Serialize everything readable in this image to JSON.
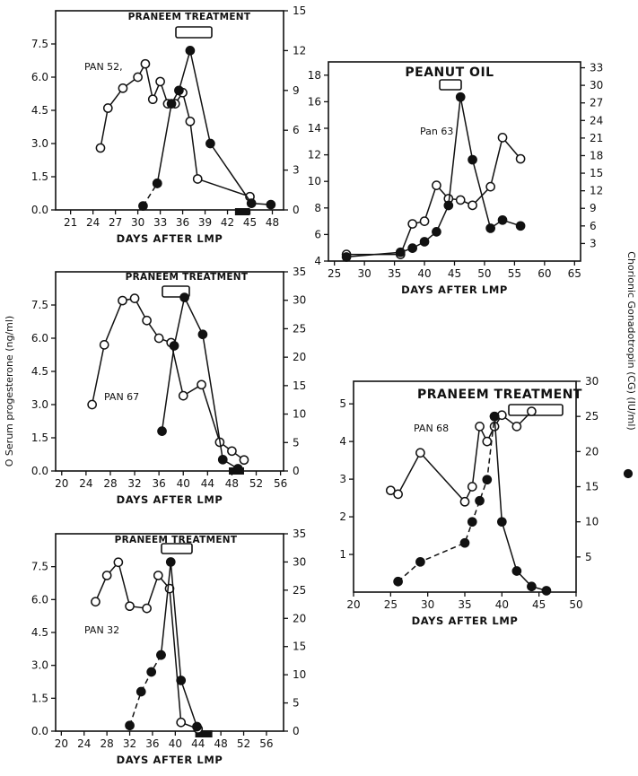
{
  "figure": {
    "left_ylabel": "O Serum progesterone (ng/ml)",
    "right_ylabel": "Chorionic Gonadotropin (CG) (IU/ml)",
    "right_ylabel_marker": "●"
  },
  "chart_data": [
    {
      "id": "pan52",
      "type": "line",
      "title": "PRANEEM TREATMENT",
      "label": "PAN 52,",
      "xlabel": "DAYS AFTER LMP",
      "xticks": [
        "21",
        "24",
        "27",
        "30",
        "33",
        "36",
        "39",
        "42",
        "45",
        "48"
      ],
      "xlim": [
        19,
        49.5
      ],
      "ylim_left": [
        0,
        9
      ],
      "yticks_left": [
        "0.0",
        "1.5",
        "3.0",
        "4.5",
        "6.0",
        "7.5"
      ],
      "ylim_right": [
        0,
        15
      ],
      "yticks_right": [
        "0",
        "3",
        "6",
        "9",
        "12",
        "15"
      ],
      "treatment_range": [
        36,
        40
      ],
      "blackbar_range": [
        43,
        45
      ],
      "series": [
        {
          "axis": "left",
          "marker": "open",
          "dash": "none",
          "points": [
            [
              25,
              2.8
            ],
            [
              26,
              4.6
            ],
            [
              28,
              5.5
            ],
            [
              30,
              6.0
            ],
            [
              31,
              6.6
            ],
            [
              32,
              5.0
            ],
            [
              33,
              5.8
            ],
            [
              34,
              4.8
            ],
            [
              35,
              4.8
            ],
            [
              36,
              5.3
            ],
            [
              37,
              4.0
            ],
            [
              38,
              1.4
            ],
            [
              45,
              0.6
            ]
          ]
        },
        {
          "axis": "right",
          "marker": "filled",
          "dash": "dashed",
          "points": [
            [
              30.7,
              0.3
            ],
            [
              32.6,
              2.0
            ]
          ]
        },
        {
          "axis": "right",
          "marker": "filled",
          "dash": "none",
          "points": [
            [
              32.6,
              2.0
            ],
            [
              34.5,
              8.0
            ],
            [
              35.5,
              9.0
            ],
            [
              37,
              12.0
            ],
            [
              39.7,
              5.0
            ],
            [
              45.2,
              0.5
            ],
            [
              47.8,
              0.4
            ]
          ]
        }
      ]
    },
    {
      "id": "pan63",
      "type": "line",
      "title": "PEANUT OIL",
      "label": "Pan 63",
      "xlabel": "DAYS AFTER LMP",
      "xticks": [
        "25",
        "30",
        "35",
        "40",
        "45",
        "50",
        "55",
        "60",
        "65"
      ],
      "xlim": [
        24,
        66
      ],
      "ylim_left": [
        4,
        19
      ],
      "yticks_left": [
        "4",
        "6",
        "8",
        "10",
        "12",
        "14",
        "16",
        "18"
      ],
      "ylim_right": [
        0,
        34
      ],
      "yticks_right": [
        "3",
        "6",
        "9",
        "12",
        "15",
        "18",
        "21",
        "24",
        "27",
        "30",
        "33"
      ],
      "treatment_range": [
        41,
        46
      ],
      "series": [
        {
          "axis": "left",
          "marker": "open",
          "dash": "none",
          "points": [
            [
              27,
              4.5
            ],
            [
              36,
              4.5
            ],
            [
              38,
              6.8
            ],
            [
              40,
              7.0
            ],
            [
              42,
              9.7
            ],
            [
              44,
              8.7
            ],
            [
              46,
              8.6
            ],
            [
              48,
              8.2
            ],
            [
              51,
              9.6
            ],
            [
              53,
              13.3
            ],
            [
              56,
              11.7
            ]
          ]
        },
        {
          "axis": "right",
          "marker": "filled",
          "dash": "none",
          "points": [
            [
              27,
              0.7
            ],
            [
              36,
              1.5
            ],
            [
              38,
              2.2
            ],
            [
              40,
              3.3
            ],
            [
              42,
              5.0
            ],
            [
              44,
              9.5
            ],
            [
              46,
              28.0
            ],
            [
              48,
              17.3
            ],
            [
              51,
              5.6
            ],
            [
              53,
              7.0
            ],
            [
              56,
              6.0
            ]
          ]
        }
      ]
    },
    {
      "id": "pan67",
      "type": "line",
      "title": "PRANEEM TREATMENT",
      "label": "PAN 67",
      "xlabel": "DAYS AFTER LMP",
      "xticks": [
        "20",
        "24",
        "28",
        "32",
        "36",
        "40",
        "44",
        "48",
        "52",
        "56"
      ],
      "xlim": [
        19,
        56.5
      ],
      "ylim_left": [
        0,
        9
      ],
      "yticks_left": [
        "0.0",
        "1.5",
        "3.0",
        "4.5",
        "6.0",
        "7.5"
      ],
      "ylim_right": [
        0,
        35
      ],
      "yticks_right": [
        "0",
        "5",
        "10",
        "15",
        "20",
        "25",
        "30",
        "35"
      ],
      "treatment_range": [
        37,
        42
      ],
      "blackbar_range": [
        47.5,
        50
      ],
      "series": [
        {
          "axis": "left",
          "marker": "open",
          "dash": "none",
          "points": [
            [
              25,
              3.0
            ],
            [
              27,
              5.7
            ],
            [
              30,
              7.7
            ],
            [
              32,
              7.8
            ],
            [
              34,
              6.8
            ],
            [
              36,
              6.0
            ],
            [
              38,
              5.8
            ],
            [
              40,
              3.4
            ],
            [
              43,
              3.9
            ],
            [
              46,
              1.3
            ],
            [
              48,
              0.9
            ],
            [
              50,
              0.5
            ]
          ]
        },
        {
          "axis": "right",
          "marker": "filled",
          "dash": "none",
          "points": [
            [
              36.5,
              7.0
            ],
            [
              38.5,
              22.0
            ],
            [
              40.2,
              30.5
            ],
            [
              43.2,
              24.0
            ],
            [
              46.5,
              2.0
            ],
            [
              49,
              0.4
            ]
          ]
        }
      ]
    },
    {
      "id": "pan68",
      "type": "line",
      "title": "PRANEEM TREATMENT",
      "label": "PAN 68",
      "xlabel": "DAYS AFTER LMP",
      "xticks": [
        "20",
        "25",
        "30",
        "35",
        "40",
        "45",
        "50"
      ],
      "xlim": [
        20,
        50
      ],
      "ylim_left": [
        0,
        5.6
      ],
      "yticks_left": [
        "1",
        "2",
        "3",
        "4",
        "5"
      ],
      "ylim_right": [
        0,
        30
      ],
      "yticks_right": [
        "5",
        "10",
        "15",
        "20",
        "25",
        "30"
      ],
      "treatment_range": [
        40,
        45
      ],
      "series": [
        {
          "axis": "left",
          "marker": "open",
          "dash": "none",
          "points": [
            [
              25,
              2.7
            ],
            [
              26,
              2.6
            ],
            [
              29,
              3.7
            ],
            [
              35,
              2.4
            ],
            [
              36,
              2.8
            ],
            [
              37,
              4.4
            ],
            [
              38,
              4.0
            ],
            [
              39,
              4.4
            ],
            [
              40,
              4.7
            ],
            [
              42,
              4.4
            ],
            [
              44,
              4.8
            ]
          ]
        },
        {
          "axis": "right",
          "marker": "filled",
          "dash": "dashed",
          "points": [
            [
              26,
              1.5
            ],
            [
              29,
              4.3
            ],
            [
              35,
              7.0
            ],
            [
              36,
              10.0
            ],
            [
              37,
              13.0
            ],
            [
              38,
              16.0
            ],
            [
              39,
              25.0
            ]
          ]
        },
        {
          "axis": "right",
          "marker": "filled",
          "dash": "none",
          "points": [
            [
              39,
              25.0
            ],
            [
              40,
              10.0
            ],
            [
              42,
              3.0
            ],
            [
              44,
              0.8
            ],
            [
              46,
              0.2
            ]
          ]
        }
      ]
    },
    {
      "id": "pan32",
      "type": "line",
      "title": "PRANEEM TREATMENT",
      "label": "PAN 32",
      "xlabel": "DAYS AFTER LMP",
      "xticks": [
        "20",
        "24",
        "28",
        "32",
        "36",
        "40",
        "44",
        "48",
        "52",
        "56"
      ],
      "xlim": [
        19,
        59
      ],
      "ylim_left": [
        0,
        9
      ],
      "yticks_left": [
        "0.0",
        "1.5",
        "3.0",
        "4.5",
        "6.0",
        "7.5"
      ],
      "ylim_right": [
        0,
        35
      ],
      "yticks_right": [
        "0",
        "5",
        "10",
        "15",
        "20",
        "25",
        "30",
        "35"
      ],
      "treatment_range": [
        37,
        40
      ],
      "blackbar_range": [
        43.5,
        46.5
      ],
      "series": [
        {
          "axis": "left",
          "marker": "open",
          "dash": "none",
          "points": [
            [
              26,
              5.9
            ],
            [
              28,
              7.1
            ],
            [
              30,
              7.7
            ],
            [
              32,
              5.7
            ],
            [
              35,
              5.6
            ],
            [
              37,
              7.1
            ],
            [
              39,
              6.5
            ],
            [
              41,
              0.4
            ],
            [
              44,
              0.1
            ]
          ]
        },
        {
          "axis": "right",
          "marker": "filled",
          "dash": "dashed",
          "points": [
            [
              32,
              1.0
            ],
            [
              34,
              7.0
            ],
            [
              35.8,
              10.5
            ],
            [
              37.5,
              13.5
            ]
          ]
        },
        {
          "axis": "right",
          "marker": "filled",
          "dash": "none",
          "points": [
            [
              37.5,
              13.5
            ],
            [
              39.2,
              30.0
            ],
            [
              41,
              9.0
            ],
            [
              43.8,
              0.8
            ]
          ]
        }
      ]
    }
  ]
}
